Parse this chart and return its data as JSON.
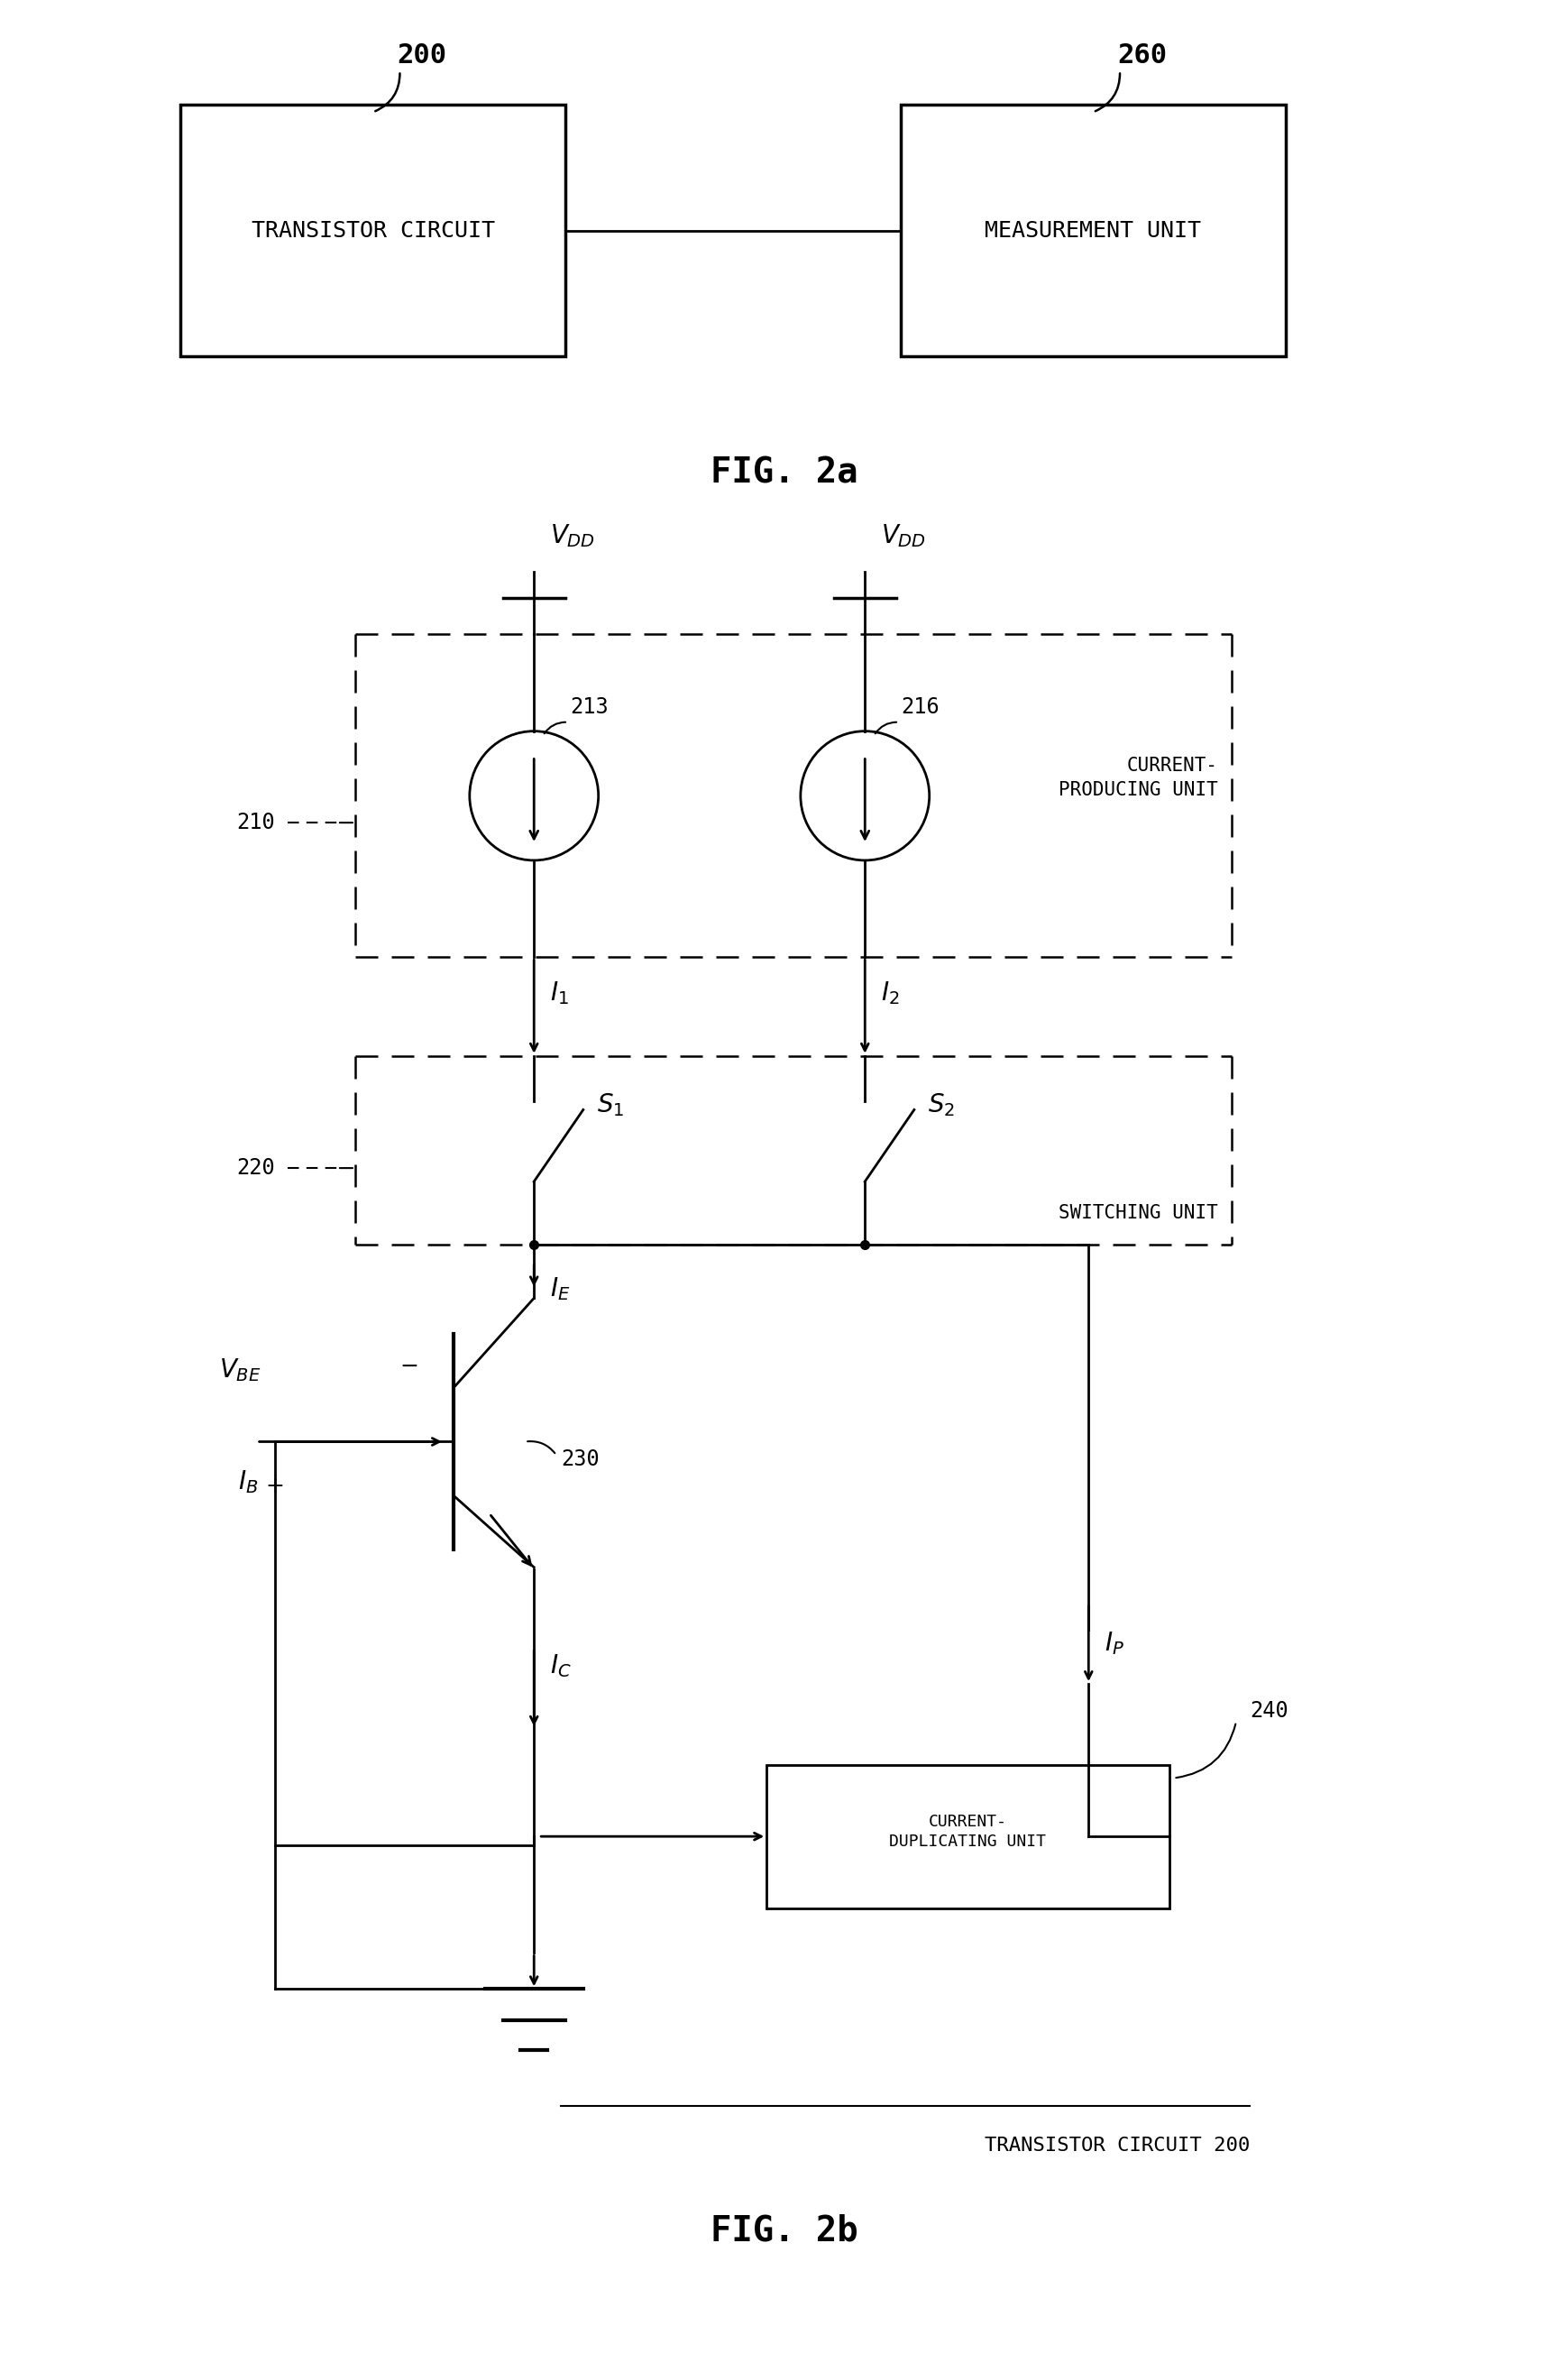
{
  "bg_color": "#ffffff",
  "fig_width": 17.39,
  "fig_height": 26.3,
  "fig2a_label": "FIG. 2a",
  "fig2b_label": "FIG. 2b",
  "transistor_circuit_label": "TRANSISTOR CIRCUIT",
  "measurement_unit_label": "MEASUREMENT UNIT",
  "label_200": "200",
  "label_260": "260",
  "label_210": "210",
  "label_213": "213",
  "label_216": "216",
  "label_220": "220",
  "label_230": "230",
  "label_240": "240",
  "current_producing": "CURRENT-\nPRODUCING UNIT",
  "switching_unit": "SWITCHING UNIT",
  "current_duplicating": "CURRENT-\nDUPLICATING UNIT",
  "transistor_circuit_200": "TRANSISTOR CIRCUIT 200"
}
